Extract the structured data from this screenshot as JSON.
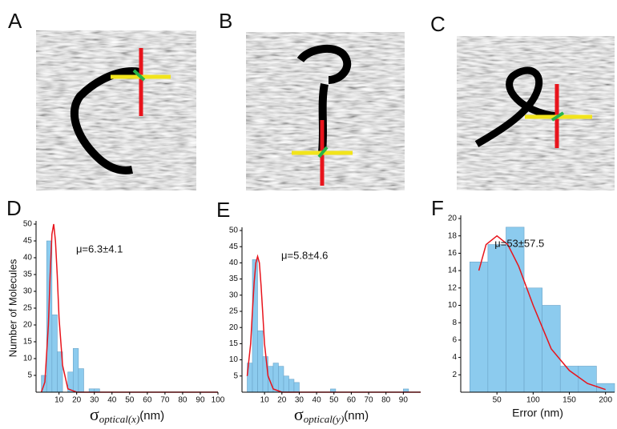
{
  "images": [
    {
      "label": "A"
    },
    {
      "label": "B"
    },
    {
      "label": "C"
    }
  ],
  "chart_data": [
    {
      "type": "histogram",
      "panel_label": "D",
      "y_label": "Number of Molecules",
      "x_label": "σ",
      "x_label_sub": "optical(x)",
      "x_label_unit": "(nm)",
      "annotation": "μ=6.3±4.1",
      "color": "#8ccbee",
      "bins": [
        0,
        3,
        6,
        9,
        12,
        15,
        18,
        21,
        24,
        27,
        30,
        33,
        36,
        39,
        42,
        45
      ],
      "values": [
        5,
        45,
        23,
        12,
        0,
        6,
        13,
        7,
        0,
        1,
        1,
        0,
        0,
        0,
        0
      ],
      "fit": {
        "color": "#e8141c",
        "x": [
          0,
          2,
          4,
          5,
          6,
          7,
          8,
          9,
          10,
          12,
          15,
          20,
          30,
          50,
          100
        ],
        "values": [
          0,
          3,
          20,
          35,
          47,
          50,
          45,
          35,
          22,
          8,
          1,
          0,
          0,
          0,
          0
        ]
      },
      "xlim": [
        -3,
        100
      ],
      "ylim": [
        0,
        50
      ],
      "xticks": [
        10,
        20,
        30,
        40,
        50,
        60,
        70,
        80,
        90,
        100
      ],
      "yticks": [
        5,
        10,
        15,
        20,
        25,
        30,
        35,
        40,
        45,
        50
      ]
    },
    {
      "type": "histogram",
      "panel_label": "E",
      "x_label": "σ",
      "x_label_sub": "optical(y)",
      "x_label_unit": "(nm)",
      "annotation": "μ=5.8±4.6",
      "color": "#8ccbee",
      "bins": [
        0,
        3,
        6,
        9,
        12,
        15,
        18,
        21,
        24,
        27,
        30,
        33,
        36,
        39,
        42,
        45,
        48,
        51,
        54,
        57,
        60,
        63,
        66,
        69,
        72,
        75,
        78,
        81,
        84,
        87,
        90,
        93
      ],
      "values": [
        9,
        41,
        19,
        11,
        8,
        9,
        8,
        5,
        4,
        3,
        0,
        0,
        0,
        0,
        0,
        0,
        1,
        0,
        0,
        0,
        0,
        0,
        0,
        0,
        0,
        0,
        0,
        0,
        0,
        0,
        1
      ],
      "fit": {
        "color": "#e8141c",
        "x": [
          0,
          2,
          3,
          4,
          5,
          6,
          7,
          8,
          9,
          10,
          12,
          15,
          20,
          30,
          50,
          100
        ],
        "values": [
          5,
          15,
          25,
          34,
          40,
          42,
          40,
          33,
          24,
          15,
          5,
          1,
          0,
          0,
          0,
          0
        ]
      },
      "xlim": [
        -3,
        100
      ],
      "ylim": [
        0,
        50
      ],
      "xticks": [
        10,
        20,
        30,
        40,
        50,
        60,
        70,
        80,
        90
      ],
      "yticks": [
        5,
        10,
        15,
        20,
        25,
        30,
        35,
        40,
        45,
        50
      ]
    },
    {
      "type": "histogram",
      "panel_label": "F",
      "x_label": "Error (nm)",
      "annotation": "μ=53±57.5",
      "color": "#8ccbee",
      "bins": [
        12.5,
        37.5,
        62.5,
        87.5,
        112.5,
        137.5,
        162.5,
        187.5,
        212.5
      ],
      "values": [
        15,
        17,
        19,
        12,
        10,
        3,
        3,
        1
      ],
      "fit": {
        "color": "#e8141c",
        "x": [
          25,
          35,
          50,
          65,
          80,
          100,
          125,
          150,
          175,
          200
        ],
        "values": [
          14,
          17,
          18,
          17,
          14.5,
          10,
          5,
          2.5,
          1,
          0.3
        ]
      },
      "xlim": [
        0,
        212.5
      ],
      "ylim": [
        0,
        20
      ],
      "xticks": [
        50,
        100,
        150,
        200
      ],
      "yticks": [
        2,
        4,
        6,
        8,
        10,
        12,
        14,
        16,
        18,
        20
      ]
    }
  ]
}
